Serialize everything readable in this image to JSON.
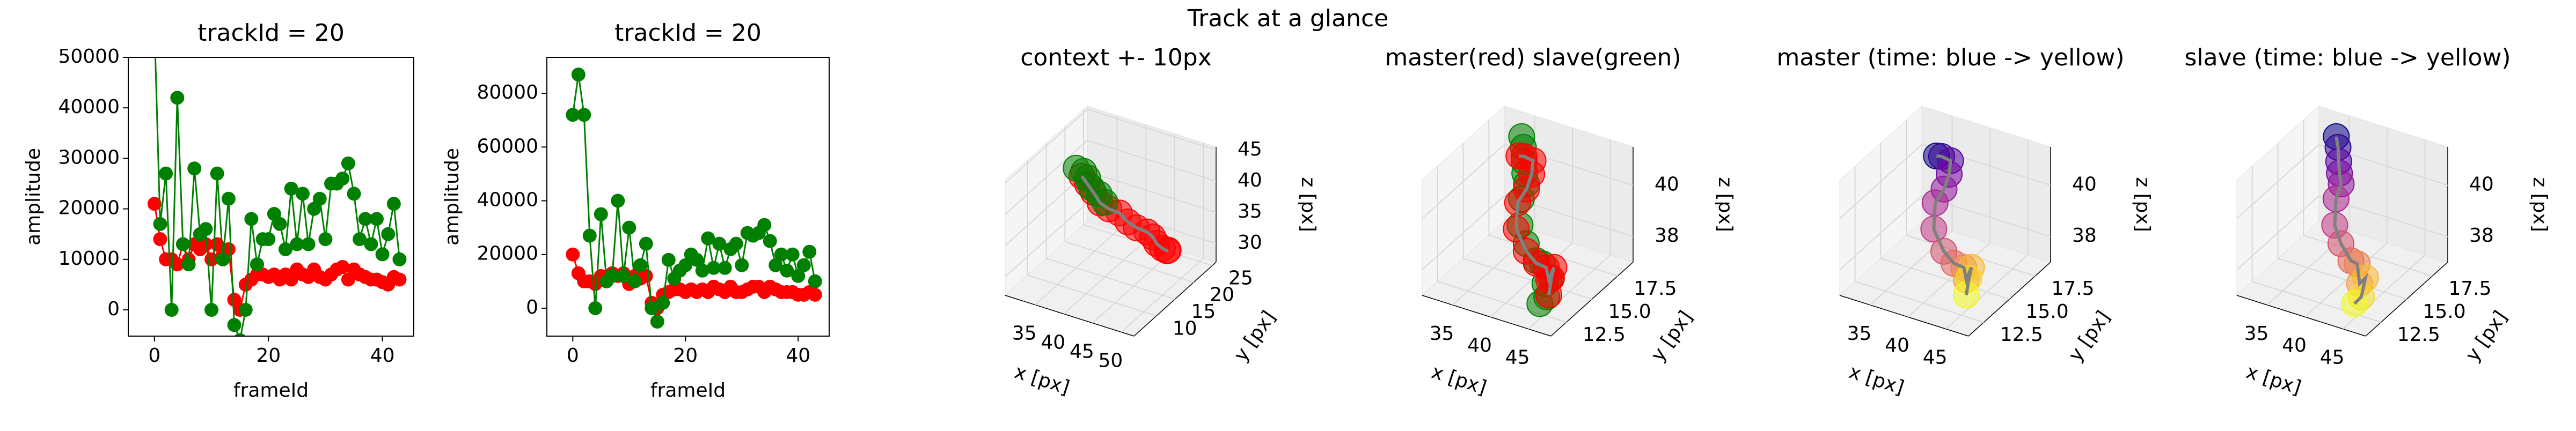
{
  "title": "Track at a glance",
  "chart_data": [
    {
      "type": "line",
      "title": "trackId = 20",
      "xlabel": "frameId",
      "ylabel": "amplitude",
      "xlim": [
        -4.6,
        45.5
      ],
      "ylim": [
        -5200,
        50000
      ],
      "xticks": [
        0,
        20,
        40
      ],
      "yticks": [
        0,
        10000,
        20000,
        30000,
        40000,
        50000
      ],
      "x": [
        0,
        1,
        2,
        3,
        4,
        5,
        6,
        7,
        8,
        9,
        10,
        11,
        12,
        13,
        14,
        15,
        16,
        17,
        18,
        19,
        20,
        21,
        22,
        23,
        24,
        25,
        26,
        27,
        28,
        29,
        30,
        31,
        32,
        33,
        34,
        35,
        36,
        37,
        38,
        39,
        40,
        41,
        42,
        43
      ],
      "series": [
        {
          "color": "#ff0000",
          "values": [
            21000,
            14000,
            10000,
            10000,
            9000,
            13000,
            10000,
            13000,
            12000,
            13000,
            10000,
            13000,
            11000,
            12000,
            2000,
            0,
            5000,
            6000,
            7000,
            7000,
            6500,
            7000,
            6000,
            7000,
            6000,
            8000,
            7000,
            6500,
            8000,
            6500,
            6000,
            7000,
            8000,
            8500,
            6000,
            8000,
            7000,
            6500,
            6000,
            6000,
            5500,
            5000,
            6500,
            6000
          ]
        },
        {
          "color": "#008000",
          "values": [
            56000,
            17000,
            27000,
            0,
            42000,
            13000,
            9000,
            28000,
            15000,
            16000,
            0,
            27000,
            10000,
            22000,
            -3000,
            -6000,
            0,
            18000,
            9000,
            14000,
            14000,
            19000,
            17000,
            12000,
            24000,
            13000,
            23000,
            13000,
            20000,
            22000,
            14000,
            25000,
            25000,
            26000,
            29000,
            23000,
            14000,
            18000,
            13000,
            18000,
            11000,
            15000,
            21000,
            10000
          ]
        }
      ]
    },
    {
      "type": "line",
      "title": "trackId = 20",
      "xlabel": "frameId",
      "ylabel": "amplitude",
      "xlim": [
        -4.6,
        45.5
      ],
      "ylim": [
        -10400,
        93400
      ],
      "xticks": [
        0,
        20,
        40
      ],
      "yticks": [
        0,
        20000,
        40000,
        60000,
        80000
      ],
      "x": [
        0,
        1,
        2,
        3,
        4,
        5,
        6,
        7,
        8,
        9,
        10,
        11,
        12,
        13,
        14,
        15,
        16,
        17,
        18,
        19,
        20,
        21,
        22,
        23,
        24,
        25,
        26,
        27,
        28,
        29,
        30,
        31,
        32,
        33,
        34,
        35,
        36,
        37,
        38,
        39,
        40,
        41,
        42,
        43
      ],
      "series": [
        {
          "color": "#ff0000",
          "values": [
            20000,
            13000,
            10000,
            10000,
            9000,
            12000,
            10000,
            13000,
            12000,
            13000,
            9000,
            12000,
            11000,
            12000,
            2000,
            0,
            5000,
            6000,
            7000,
            7000,
            6000,
            7000,
            6000,
            7000,
            6000,
            8000,
            7000,
            6000,
            8000,
            6000,
            6000,
            7000,
            8000,
            8000,
            6000,
            8000,
            7000,
            6000,
            6000,
            6000,
            5000,
            5000,
            6000,
            5000
          ]
        },
        {
          "color": "#008000",
          "values": [
            72000,
            87000,
            72000,
            27000,
            0,
            35000,
            10000,
            12000,
            40000,
            12000,
            30000,
            10000,
            16000,
            24000,
            0,
            -5000,
            2000,
            18000,
            11000,
            14000,
            16000,
            20000,
            18000,
            14000,
            26000,
            15000,
            24000,
            15000,
            22000,
            24000,
            16000,
            28000,
            27000,
            28000,
            31000,
            25000,
            16000,
            20000,
            14000,
            20000,
            12000,
            16000,
            21000,
            10000
          ]
        }
      ]
    },
    {
      "type": "scatter3d",
      "title": "context +- 10px",
      "xlabel": "x [px]",
      "ylabel": "y [px]",
      "zlabel": "z [px]",
      "xlim": [
        29.8,
        52.2
      ],
      "ylim": [
        4,
        26
      ],
      "zlim": [
        27,
        45.5
      ],
      "xticks": [
        35,
        40,
        45,
        50
      ],
      "yticks": [
        10,
        15,
        20,
        25
      ],
      "zticks": [
        30,
        35,
        40,
        45
      ],
      "series": [
        {
          "color": "#ff0000",
          "line_color": "#808080",
          "x": [
            36,
            37,
            38,
            39.5,
            41,
            42.5,
            44,
            45.5,
            47,
            48,
            49,
            50,
            50.5,
            51
          ],
          "y": [
            15,
            15,
            15,
            14.5,
            14.5,
            15,
            15,
            15,
            15.5,
            15.5,
            15,
            15,
            15.5,
            15
          ],
          "z": [
            42,
            41,
            40,
            39,
            38.5,
            38,
            37,
            36.5,
            36,
            35.5,
            35,
            34.5,
            34,
            34.5
          ]
        },
        {
          "color": "#008000",
          "x": [
            35,
            36,
            37,
            38,
            39,
            40
          ],
          "y": [
            15,
            15.5,
            15,
            14.5,
            15,
            15
          ],
          "z": [
            43,
            42.5,
            42,
            41,
            40,
            39
          ]
        }
      ]
    },
    {
      "type": "scatter3d",
      "title": "master(red) slave(green)",
      "xlabel": "x [px]",
      "ylabel": "y [px]",
      "zlabel": "z [px]",
      "xlim": [
        31,
        48
      ],
      "ylim": [
        11,
        19
      ],
      "zlim": [
        37,
        41.5
      ],
      "xticks": [
        35,
        40,
        45
      ],
      "yticks": [
        12.5,
        {
          "value": 15,
          "label": "15.0"
        },
        17.5
      ],
      "zticks": [
        38,
        40
      ],
      "series": [
        {
          "color": "#008000",
          "x": [
            36,
            36.5,
            37,
            37.5,
            38,
            38,
            38.5,
            40,
            42,
            43.5,
            44.5,
            45,
            45,
            44.5
          ],
          "y": [
            17,
            16.8,
            16.5,
            16.2,
            16,
            15.5,
            15,
            14.5,
            14,
            13.5,
            13,
            13.2,
            12.8,
            12.5
          ],
          "z": [
            41.5,
            41.2,
            40.8,
            40.5,
            40.2,
            39.8,
            39,
            38.6,
            38.3,
            38.5,
            38,
            38.2,
            37.6,
            37.4
          ]
        },
        {
          "color": "#ff0000",
          "line_color": "#808080",
          "x": [
            37,
            37,
            37.5,
            38,
            38,
            37.5,
            38,
            40,
            42,
            44,
            45,
            45,
            44,
            45
          ],
          "y": [
            16,
            16.5,
            17,
            16.5,
            16,
            15.5,
            15,
            14.5,
            14,
            13.5,
            13,
            13.5,
            14,
            13
          ],
          "z": [
            41.2,
            41,
            40.7,
            40.4,
            40,
            39.6,
            38.8,
            38.3,
            38.2,
            38.4,
            38.2,
            38.5,
            37.8,
            37.6
          ]
        }
      ]
    },
    {
      "type": "scatter3d",
      "title": "master (time: blue -> yellow)",
      "xlabel": "x [px]",
      "ylabel": "y [px]",
      "zlabel": "z [px]",
      "xlim": [
        31,
        48
      ],
      "ylim": [
        11,
        19
      ],
      "zlim": [
        37,
        41.5
      ],
      "xticks": [
        35,
        40,
        45
      ],
      "yticks": [
        12.5,
        {
          "value": 15,
          "label": "15.0"
        },
        17.5
      ],
      "zticks": [
        38,
        40
      ],
      "colormap": "plasma",
      "series": [
        {
          "line_color": "#808080",
          "x": [
            37,
            37,
            37.5,
            38,
            38,
            37.5,
            38,
            40,
            42,
            44,
            45,
            45,
            44,
            45
          ],
          "y": [
            16,
            16.5,
            17,
            16.5,
            16,
            15.5,
            15,
            14.5,
            14,
            13.5,
            13,
            13.5,
            14,
            13
          ],
          "z": [
            41.2,
            41,
            40.7,
            40.4,
            40,
            39.6,
            38.8,
            38.3,
            38.2,
            38.4,
            38.2,
            38.5,
            37.8,
            37.6
          ]
        }
      ]
    },
    {
      "type": "scatter3d",
      "title": "slave (time: blue -> yellow)",
      "xlabel": "x [px]",
      "ylabel": "y [px]",
      "zlabel": "z [px]",
      "xlim": [
        31,
        48
      ],
      "ylim": [
        11,
        19
      ],
      "zlim": [
        37,
        41.5
      ],
      "xticks": [
        35,
        40,
        45
      ],
      "yticks": [
        12.5,
        {
          "value": 15,
          "label": "15.0"
        },
        17.5
      ],
      "zticks": [
        38,
        40
      ],
      "colormap": "plasma",
      "series": [
        {
          "line_color": "#808080",
          "x": [
            36,
            36.5,
            37,
            37.5,
            38,
            38,
            38.5,
            40,
            42,
            43.5,
            44.5,
            45,
            45,
            44.5
          ],
          "y": [
            17,
            16.8,
            16.5,
            16.2,
            16,
            15.5,
            15,
            14.5,
            14,
            13.5,
            13,
            13.2,
            12.8,
            12.5
          ],
          "z": [
            41.5,
            41.2,
            40.8,
            40.5,
            40.2,
            39.8,
            39,
            38.6,
            38.3,
            38.5,
            38,
            38.2,
            37.6,
            37.4
          ]
        }
      ]
    }
  ]
}
